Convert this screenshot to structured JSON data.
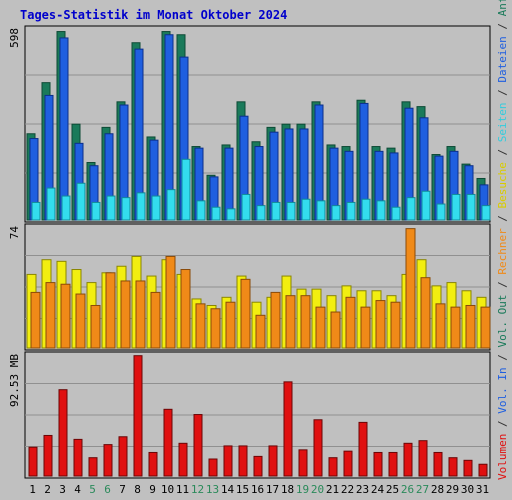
{
  "chart_data": {
    "type": "bar",
    "title": "Tages-Statistik im Monat Oktober 2024",
    "categories": [
      "1",
      "2",
      "3",
      "4",
      "5",
      "6",
      "7",
      "8",
      "9",
      "10",
      "11",
      "12",
      "13",
      "14",
      "15",
      "16",
      "17",
      "18",
      "19",
      "20",
      "21",
      "22",
      "23",
      "24",
      "25",
      "26",
      "27",
      "28",
      "29",
      "30",
      "31"
    ],
    "weekend_days": [
      "5",
      "6",
      "12",
      "13",
      "19",
      "20",
      "26",
      "27"
    ],
    "grid": true,
    "panels": [
      {
        "id": "requests",
        "max_label": "598",
        "ylim": [
          0,
          598
        ],
        "series": [
          {
            "name": "Anfragen",
            "color": "#1a7a5a",
            "values": [
              270,
              430,
              590,
              300,
              180,
              290,
              370,
              555,
              260,
              590,
              580,
              230,
              140,
              235,
              370,
              245,
              290,
              300,
              300,
              370,
              235,
              230,
              375,
              230,
              225,
              370,
              355,
              205,
              230,
              175,
              130
            ]
          },
          {
            "name": "Dateien",
            "color": "#1f5fe0",
            "values": [
              255,
              390,
              570,
              240,
              170,
              270,
              360,
              535,
              250,
              580,
              510,
              225,
              135,
              225,
              325,
              230,
              275,
              285,
              285,
              360,
              225,
              215,
              365,
              215,
              210,
              350,
              320,
              200,
              215,
              170,
              110
            ]
          },
          {
            "name": "Seiten",
            "color": "#33ddee",
            "values": [
              55,
              100,
              75,
              115,
              55,
              75,
              70,
              85,
              75,
              95,
              190,
              60,
              40,
              35,
              80,
              45,
              55,
              55,
              65,
              60,
              45,
              55,
              65,
              60,
              40,
              70,
              90,
              50,
              80,
              80,
              45
            ]
          }
        ]
      },
      {
        "id": "visits",
        "max_label": "74",
        "ylim": [
          0,
          74
        ],
        "series": [
          {
            "name": "Besuche",
            "color": "#f2ee10",
            "values": [
              45,
              54,
              53,
              48,
              40,
              46,
              50,
              56,
              44,
              54,
              45,
              30,
              26,
              31,
              44,
              28,
              31,
              44,
              36,
              36,
              32,
              38,
              35,
              35,
              32,
              45,
              54,
              38,
              40,
              35,
              31
            ]
          },
          {
            "name": "Rechner",
            "color": "#f08a18",
            "values": [
              34,
              40,
              39,
              33,
              26,
              46,
              41,
              41,
              34,
              56,
              48,
              27,
              24,
              28,
              42,
              20,
              34,
              32,
              32,
              25,
              22,
              31,
              25,
              29,
              28,
              73,
              43,
              27,
              25,
              26,
              25
            ]
          }
        ]
      },
      {
        "id": "volume",
        "max_label": "92.53 MB",
        "ylim": [
          0,
          92.53
        ],
        "series": [
          {
            "name": "Volumen In",
            "color": "#e01010",
            "values": [
              22,
              31,
              66,
              28,
              14,
              24,
              30,
              92,
              18,
              51,
              25,
              47,
              13,
              23,
              23,
              15,
              23,
              72,
              20,
              43,
              14,
              19,
              41,
              18,
              18,
              25,
              27,
              18,
              14,
              12,
              9
            ]
          }
        ]
      }
    ],
    "right_legend": [
      {
        "text": "Volumen",
        "color": "#e01010"
      },
      {
        "text": " / ",
        "color": "#333333"
      },
      {
        "text": "Vol. In",
        "color": "#1f5fe0"
      },
      {
        "text": " / ",
        "color": "#333333"
      },
      {
        "text": "Vol. Out",
        "color": "#1a7a5a"
      },
      {
        "text": " / ",
        "color": "#333333"
      },
      {
        "text": "Rechner",
        "color": "#f08a18"
      },
      {
        "text": " / ",
        "color": "#333333"
      },
      {
        "text": "Besuche",
        "color": "#d8cc00"
      },
      {
        "text": " / ",
        "color": "#333333"
      },
      {
        "text": "Seiten",
        "color": "#33ccdd"
      },
      {
        "text": " / ",
        "color": "#333333"
      },
      {
        "text": "Dateien",
        "color": "#1f5fe0"
      },
      {
        "text": " / ",
        "color": "#333333"
      },
      {
        "text": "Anfragen",
        "color": "#1a7a5a"
      }
    ],
    "colors": {
      "background": "#c0c0c0",
      "title": "#0000cc",
      "weekday_label": "#000000",
      "weekend_label": "#2a8a5a"
    }
  }
}
